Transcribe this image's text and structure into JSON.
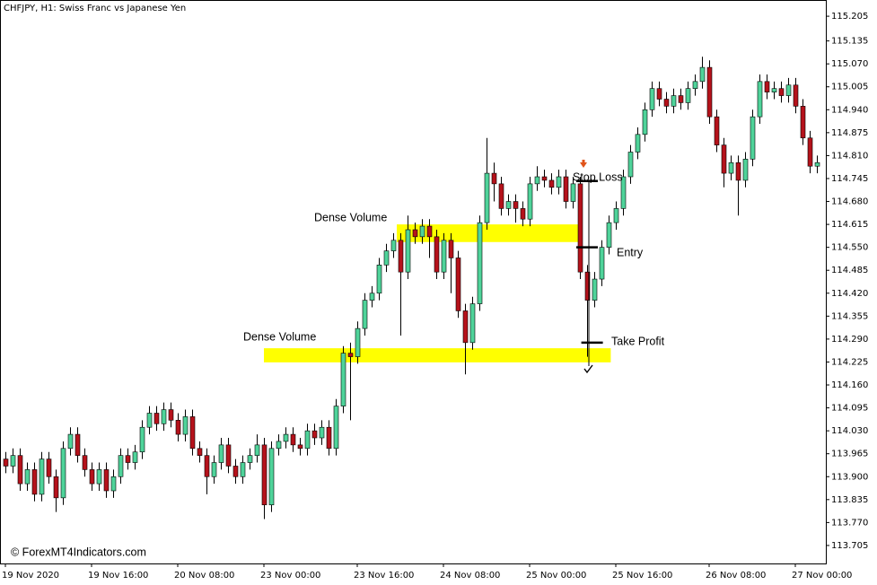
{
  "chart_data": {
    "type": "candlestick",
    "title": "CHFJPY, H1:  Swiss Franc vs Japanese Yen",
    "footer": "© ForexMT4Indicators.com",
    "up_color": "#4fd39a",
    "down_color": "#b5121b",
    "ylim": [
      113.654,
      115.251
    ],
    "yticks": [
      115.205,
      115.135,
      {
        "value": 115.07,
        "label": "115.070"
      },
      115.005,
      {
        "value": 114.94,
        "label": "114.940"
      },
      114.875,
      {
        "value": 114.81,
        "label": "114.810"
      },
      114.745,
      {
        "value": 114.68,
        "label": "114.680"
      },
      114.615,
      {
        "value": 114.55,
        "label": "114.550"
      },
      114.485,
      {
        "value": 114.42,
        "label": "114.420"
      },
      114.355,
      {
        "value": 114.29,
        "label": "114.290"
      },
      114.225,
      {
        "value": 114.16,
        "label": "114.160"
      },
      114.095,
      {
        "value": 114.03,
        "label": "114.030"
      },
      113.965,
      {
        "value": 113.9,
        "label": "113.900"
      },
      113.835,
      {
        "value": 113.77,
        "label": "113.770"
      },
      113.705
    ],
    "xticks": [
      {
        "value": 0,
        "label": "19 Nov 2020"
      },
      {
        "value": 12,
        "label": "19 Nov 16:00"
      },
      {
        "value": 24,
        "label": "20 Nov 08:00"
      },
      {
        "value": 36,
        "label": "23 Nov 00:00"
      },
      {
        "value": 49,
        "label": "23 Nov 16:00"
      },
      {
        "value": 61,
        "label": "24 Nov 08:00"
      },
      {
        "value": 73,
        "label": "25 Nov 00:00"
      },
      {
        "value": 85,
        "label": "25 Nov 16:00"
      },
      {
        "value": 98,
        "label": "26 Nov 08:00"
      },
      {
        "value": 110,
        "label": "27 Nov 00:00"
      }
    ],
    "candles": [
      [
        113.95,
        113.97,
        113.91,
        113.93
      ],
      [
        113.93,
        113.98,
        113.91,
        113.96
      ],
      [
        113.96,
        113.98,
        113.86,
        113.88
      ],
      [
        113.88,
        113.94,
        113.86,
        113.92
      ],
      [
        113.92,
        113.94,
        113.83,
        113.85
      ],
      [
        113.85,
        113.97,
        113.83,
        113.95
      ],
      [
        113.95,
        113.97,
        113.88,
        113.9
      ],
      [
        113.9,
        113.92,
        113.8,
        113.84
      ],
      [
        113.84,
        114.0,
        113.82,
        113.98
      ],
      [
        113.98,
        114.04,
        113.96,
        114.02
      ],
      [
        114.02,
        114.04,
        113.94,
        113.96
      ],
      [
        113.96,
        113.98,
        113.9,
        113.92
      ],
      [
        113.92,
        113.94,
        113.86,
        113.88
      ],
      [
        113.88,
        113.94,
        113.86,
        113.92
      ],
      [
        113.92,
        113.94,
        113.84,
        113.86
      ],
      [
        113.86,
        113.92,
        113.84,
        113.9
      ],
      [
        113.9,
        113.98,
        113.88,
        113.96
      ],
      [
        113.96,
        113.98,
        113.92,
        113.94
      ],
      [
        113.94,
        113.99,
        113.92,
        113.97
      ],
      [
        113.97,
        114.06,
        113.95,
        114.04
      ],
      [
        114.04,
        114.1,
        114.02,
        114.08
      ],
      [
        114.08,
        114.1,
        114.03,
        114.05
      ],
      [
        114.05,
        114.11,
        114.03,
        114.09
      ],
      [
        114.09,
        114.11,
        114.04,
        114.06
      ],
      [
        114.06,
        114.08,
        114.0,
        114.02
      ],
      [
        114.02,
        114.09,
        114.0,
        114.07
      ],
      [
        114.07,
        114.09,
        113.96,
        113.98
      ],
      [
        113.98,
        114.0,
        113.94,
        113.96
      ],
      [
        113.96,
        113.98,
        113.85,
        113.9
      ],
      [
        113.9,
        113.96,
        113.88,
        113.94
      ],
      [
        113.94,
        114.01,
        113.92,
        113.99
      ],
      [
        113.99,
        114.01,
        113.91,
        113.93
      ],
      [
        113.93,
        113.95,
        113.88,
        113.9
      ],
      [
        113.9,
        113.96,
        113.88,
        113.94
      ],
      [
        113.94,
        113.98,
        113.92,
        113.96
      ],
      [
        113.96,
        114.02,
        113.94,
        113.99
      ],
      [
        113.99,
        114.01,
        113.78,
        113.82
      ],
      [
        113.82,
        114.0,
        113.8,
        113.98
      ],
      [
        113.98,
        114.02,
        113.96,
        114.0
      ],
      [
        114.0,
        114.04,
        113.98,
        114.02
      ],
      [
        114.02,
        114.04,
        113.97,
        113.99
      ],
      [
        113.99,
        114.01,
        113.96,
        113.98
      ],
      [
        113.98,
        114.05,
        113.96,
        114.03
      ],
      [
        114.03,
        114.05,
        113.99,
        114.01
      ],
      [
        114.01,
        114.06,
        113.99,
        114.04
      ],
      [
        114.04,
        114.06,
        113.96,
        113.98
      ],
      [
        113.98,
        114.12,
        113.96,
        114.1
      ],
      [
        114.1,
        114.27,
        114.08,
        114.25
      ],
      [
        114.25,
        114.28,
        114.06,
        114.24
      ],
      [
        114.24,
        114.34,
        114.22,
        114.32
      ],
      [
        114.32,
        114.42,
        114.3,
        114.4
      ],
      [
        114.4,
        114.44,
        114.38,
        114.42
      ],
      [
        114.42,
        114.52,
        114.4,
        114.5
      ],
      [
        114.5,
        114.56,
        114.48,
        114.54
      ],
      [
        114.54,
        114.59,
        114.52,
        114.57
      ],
      [
        114.57,
        114.59,
        114.3,
        114.48
      ],
      [
        114.48,
        114.64,
        114.46,
        114.6
      ],
      [
        114.6,
        114.62,
        114.56,
        114.58
      ],
      [
        114.58,
        114.63,
        114.56,
        114.61
      ],
      [
        114.61,
        114.63,
        114.52,
        114.58
      ],
      [
        114.58,
        114.6,
        114.46,
        114.48
      ],
      [
        114.48,
        114.59,
        114.46,
        114.57
      ],
      [
        114.57,
        114.59,
        114.42,
        114.52
      ],
      [
        114.52,
        114.54,
        114.35,
        114.37
      ],
      [
        114.37,
        114.39,
        114.19,
        114.28
      ],
      [
        114.28,
        114.41,
        114.26,
        114.39
      ],
      [
        114.39,
        114.64,
        114.37,
        114.62
      ],
      [
        114.62,
        114.86,
        114.6,
        114.76
      ],
      [
        114.76,
        114.79,
        114.68,
        114.73
      ],
      [
        114.73,
        114.75,
        114.64,
        114.66
      ],
      [
        114.66,
        114.7,
        114.64,
        114.68
      ],
      [
        114.68,
        114.7,
        114.62,
        114.66
      ],
      [
        114.66,
        114.68,
        114.61,
        114.63
      ],
      [
        114.63,
        114.75,
        114.61,
        114.73
      ],
      [
        114.73,
        114.78,
        114.71,
        114.75
      ],
      [
        114.75,
        114.77,
        114.72,
        114.74
      ],
      [
        114.74,
        114.76,
        114.7,
        114.72
      ],
      [
        114.72,
        114.77,
        114.7,
        114.75
      ],
      [
        114.75,
        114.77,
        114.66,
        114.68
      ],
      [
        114.68,
        114.75,
        114.66,
        114.73
      ],
      [
        114.73,
        114.75,
        114.46,
        114.48
      ],
      [
        114.48,
        114.5,
        114.24,
        114.4
      ],
      [
        114.4,
        114.48,
        114.38,
        114.46
      ],
      [
        114.46,
        114.57,
        114.44,
        114.55
      ],
      [
        114.55,
        114.64,
        114.53,
        114.62
      ],
      [
        114.62,
        114.68,
        114.6,
        114.66
      ],
      [
        114.66,
        114.77,
        114.64,
        114.75
      ],
      [
        114.75,
        114.84,
        114.73,
        114.82
      ],
      [
        114.82,
        114.89,
        114.8,
        114.87
      ],
      [
        114.87,
        114.96,
        114.85,
        114.94
      ],
      [
        114.94,
        115.02,
        114.92,
        115.0
      ],
      [
        115.0,
        115.02,
        114.95,
        114.97
      ],
      [
        114.97,
        114.99,
        114.93,
        114.95
      ],
      [
        114.95,
        115.0,
        114.93,
        114.98
      ],
      [
        114.98,
        115.0,
        114.94,
        114.96
      ],
      [
        114.96,
        115.02,
        114.94,
        115.0
      ],
      [
        115.0,
        115.04,
        114.98,
        115.02
      ],
      [
        115.02,
        115.09,
        115.0,
        115.06
      ],
      [
        115.06,
        115.08,
        114.9,
        114.92
      ],
      [
        114.92,
        114.94,
        114.82,
        114.84
      ],
      [
        114.84,
        114.86,
        114.72,
        114.76
      ],
      [
        114.76,
        114.81,
        114.74,
        114.79
      ],
      [
        114.79,
        114.81,
        114.64,
        114.74
      ],
      [
        114.74,
        114.82,
        114.72,
        114.8
      ],
      [
        114.8,
        114.94,
        114.78,
        114.92
      ],
      [
        114.92,
        115.04,
        114.9,
        115.02
      ],
      [
        115.02,
        115.04,
        114.97,
        114.99
      ],
      [
        114.99,
        115.02,
        114.97,
        115.0
      ],
      [
        115.0,
        115.02,
        114.96,
        114.98
      ],
      [
        114.98,
        115.03,
        114.96,
        115.01
      ],
      [
        115.01,
        115.03,
        114.93,
        114.95
      ],
      [
        114.95,
        114.97,
        114.84,
        114.86
      ],
      [
        114.86,
        114.88,
        114.76,
        114.78
      ],
      [
        114.78,
        114.81,
        114.76,
        114.79
      ]
    ],
    "zones": [
      {
        "label": "Dense Volume",
        "low": 114.565,
        "high": 114.615,
        "color": "#ffff00"
      },
      {
        "label": "Dense Volume",
        "low": 114.224,
        "high": 114.264,
        "color": "#ffff00"
      }
    ],
    "levels": [
      {
        "label": "Stop Loss",
        "value": 114.738
      },
      {
        "label": "Entry",
        "value": 114.55
      },
      {
        "label": "Take Profit",
        "value": 114.28
      }
    ]
  }
}
